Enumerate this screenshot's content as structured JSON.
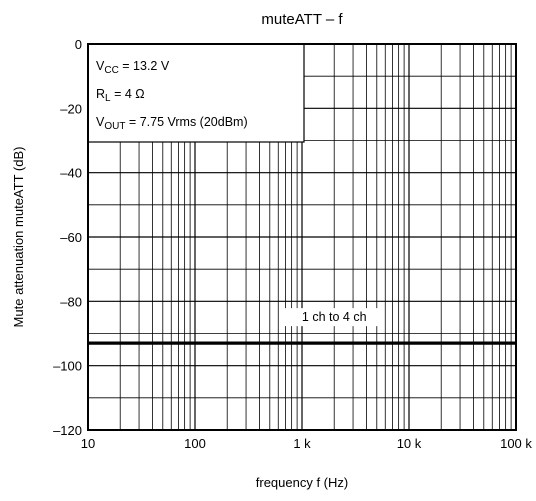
{
  "chart_data": {
    "type": "line",
    "title": "muteATT – f",
    "xlabel": "frequency   f   (Hz)",
    "ylabel": "Mute attenuation   muteATT   (dB)",
    "x_scale": "log",
    "xlim": [
      10,
      100000
    ],
    "ylim": [
      -120,
      0
    ],
    "x_ticks": [
      10,
      100,
      1000,
      10000,
      100000
    ],
    "x_tick_labels": [
      "10",
      "100",
      "1 k",
      "10 k",
      "100 k"
    ],
    "y_ticks": [
      0,
      -20,
      -40,
      -60,
      -80,
      -100,
      -120
    ],
    "y_tick_labels": [
      "0",
      "–20",
      "–40",
      "–60",
      "–80",
      "–100",
      "–120"
    ],
    "grid": true,
    "conditions": {
      "vcc": {
        "main": "V",
        "sub": "CC",
        "rest": " = 13.2 V"
      },
      "rl": {
        "main": "R",
        "sub": "L",
        "rest": " = 4 Ω"
      },
      "vout": {
        "main": "V",
        "sub": "OUT",
        "rest": " = 7.75 Vrms (20dBm)"
      }
    },
    "series": [
      {
        "name": "1 ch to 4 ch",
        "x": [
          10,
          100,
          1000,
          10000,
          100000
        ],
        "y": [
          -93,
          -93,
          -93,
          -93,
          -93
        ]
      }
    ]
  }
}
